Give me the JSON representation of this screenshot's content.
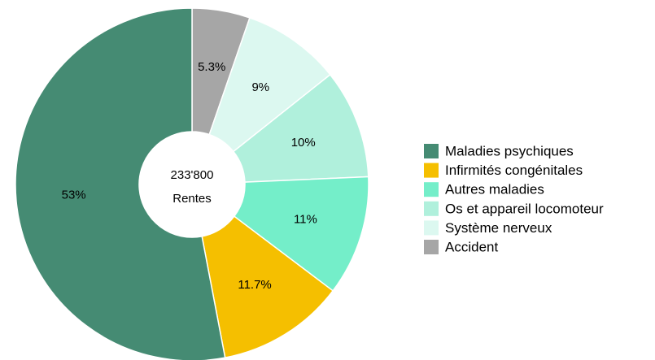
{
  "chart_data": {
    "type": "donut",
    "center_value": "233'800",
    "center_label": "Rentes",
    "categories": [
      "Maladies psychiques",
      "Infirmités congénitales",
      "Autres maladies",
      "Os et appareil locomoteur",
      "Système nerveux",
      "Accident"
    ],
    "values": [
      53,
      11.7,
      11,
      10,
      9,
      5.3
    ],
    "value_labels": [
      "53%",
      "11.7%",
      "11%",
      "10%",
      "9%",
      "5.3%"
    ],
    "colors": [
      "#458b73",
      "#f5bf00",
      "#74eec9",
      "#b0f0dc",
      "#dcf8f0",
      "#a6a6a6"
    ],
    "legend": "right"
  }
}
